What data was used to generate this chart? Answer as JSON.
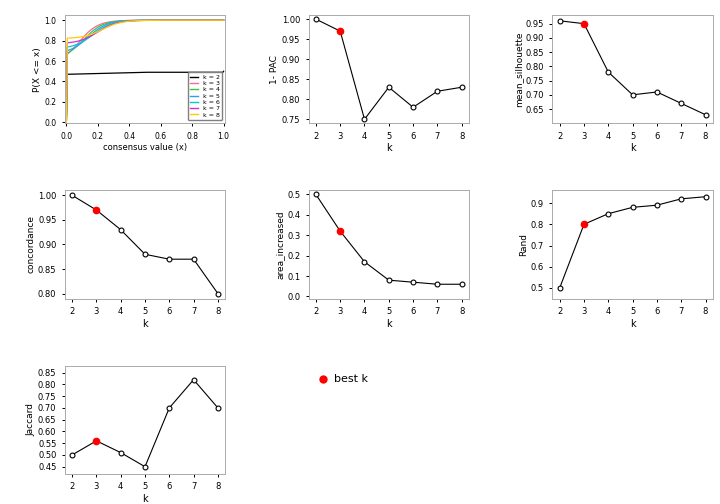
{
  "k_values": [
    2,
    3,
    4,
    5,
    6,
    7,
    8
  ],
  "best_k": 3,
  "pac_1minus": [
    1.0,
    0.97,
    0.75,
    0.83,
    0.78,
    0.82,
    0.83
  ],
  "mean_silhouette": [
    0.96,
    0.95,
    0.78,
    0.7,
    0.71,
    0.67,
    0.63
  ],
  "concordance": [
    1.0,
    0.97,
    0.93,
    0.88,
    0.87,
    0.87,
    0.8
  ],
  "area_increased": [
    0.5,
    0.32,
    0.17,
    0.08,
    0.07,
    0.06,
    0.06
  ],
  "rand": [
    0.5,
    0.8,
    0.85,
    0.88,
    0.89,
    0.92,
    0.93
  ],
  "jaccard": [
    0.5,
    0.56,
    0.51,
    0.45,
    0.7,
    0.82,
    0.7
  ],
  "cdf_colors": {
    "k2": "#000000",
    "k3": "#FF6699",
    "k4": "#33CC33",
    "k5": "#3399FF",
    "k6": "#00CCCC",
    "k7": "#CC33CC",
    "k8": "#FFCC00"
  },
  "background_color": "#FFFFFF",
  "open_circle_facecolor": "#FFFFFF",
  "best_k_color": "#FF0000",
  "line_color": "#000000",
  "axis_color": "#AAAAAA",
  "tick_color": "#000000"
}
